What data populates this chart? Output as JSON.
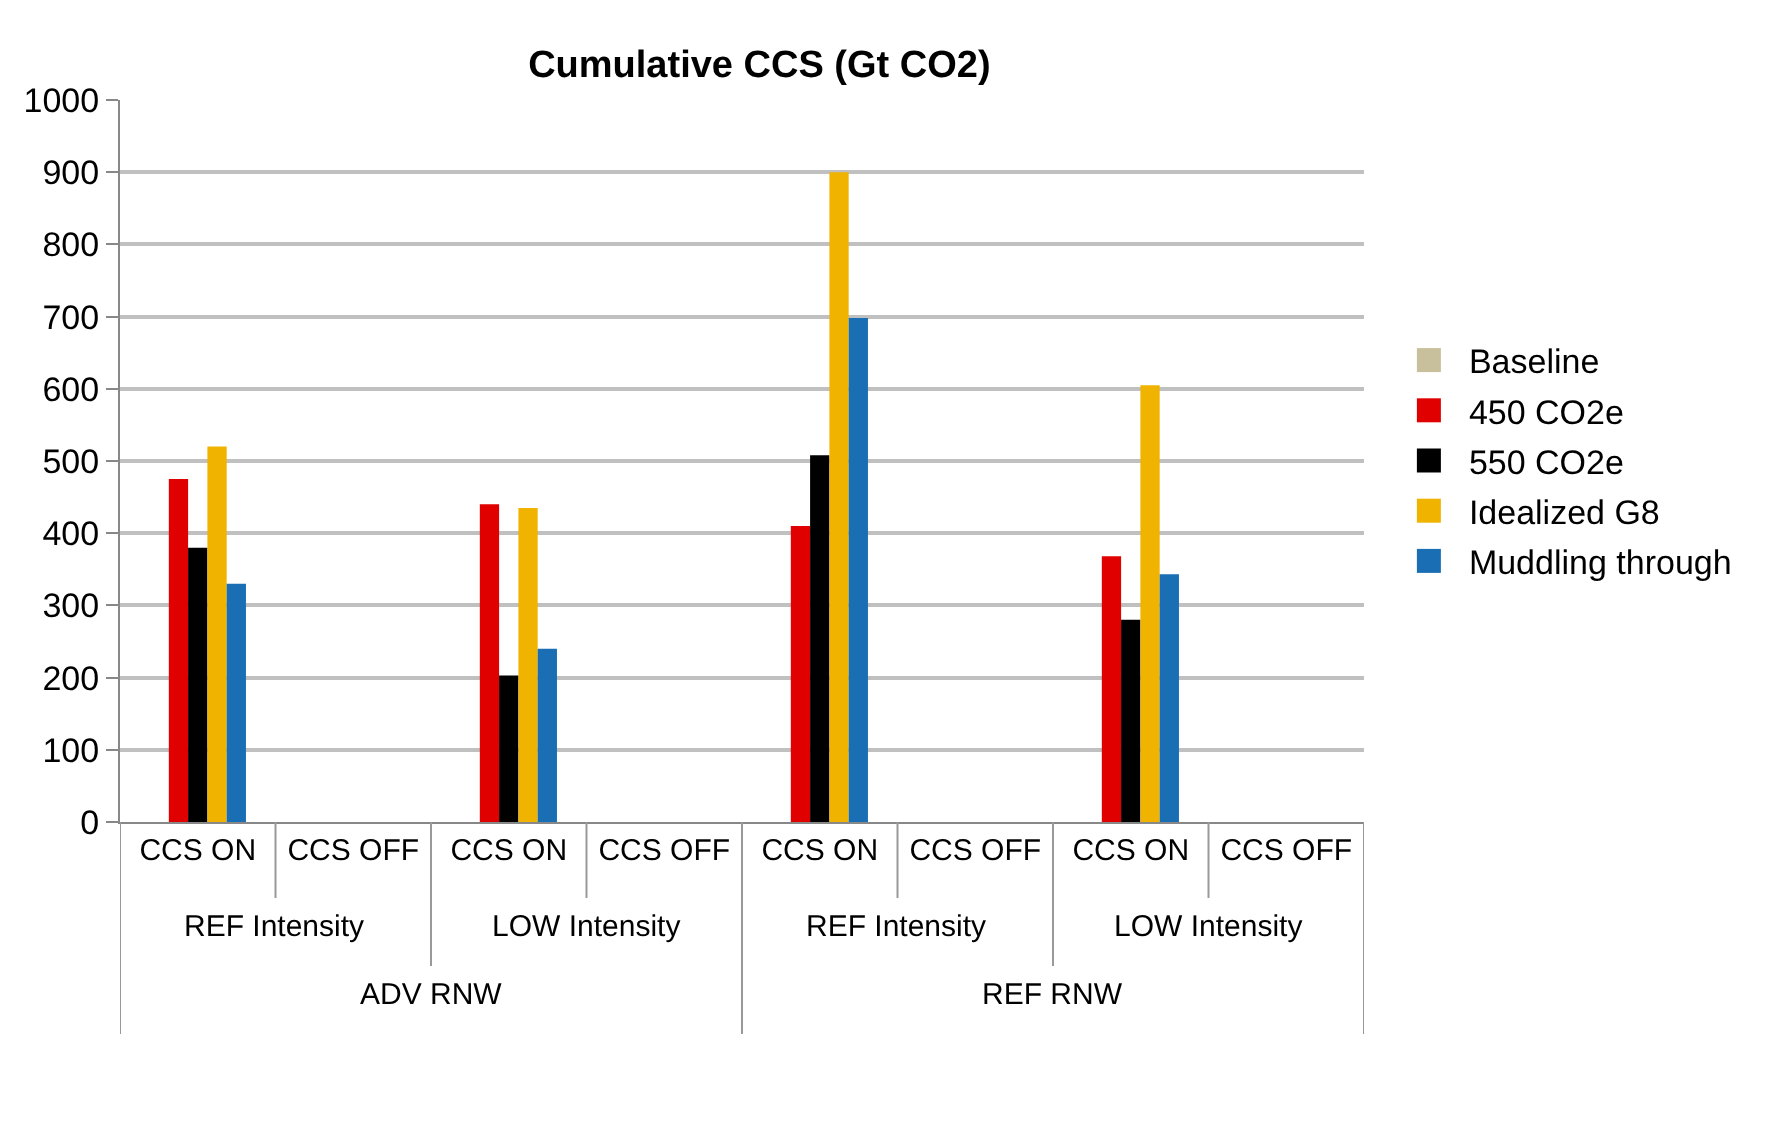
{
  "chart_data": {
    "type": "bar",
    "title": "Cumulative CCS (Gt CO2)",
    "categories": [
      "CCS ON",
      "CCS OFF",
      "CCS ON",
      "CCS OFF",
      "CCS ON",
      "CCS OFF",
      "CCS ON",
      "CCS OFF"
    ],
    "series": [
      {
        "name": "Baseline",
        "color": "#c8bf9c",
        "values": [
          null,
          null,
          null,
          null,
          null,
          null,
          null,
          null
        ]
      },
      {
        "name": "450 CO2e",
        "color": "#e00000",
        "values": [
          475,
          null,
          440,
          null,
          410,
          null,
          368,
          null
        ]
      },
      {
        "name": "550 CO2e",
        "color": "#000000",
        "values": [
          380,
          null,
          203,
          null,
          508,
          null,
          280,
          null
        ]
      },
      {
        "name": "Idealized G8",
        "color": "#f0b400",
        "values": [
          520,
          null,
          435,
          null,
          900,
          null,
          605,
          null
        ]
      },
      {
        "name": "Muddling through",
        "color": "#1a6eb4",
        "values": [
          330,
          null,
          240,
          null,
          698,
          null,
          343,
          null
        ]
      }
    ],
    "annotations": [
      "REF Intensity",
      "LOW Intensity",
      "REF Intensity",
      "LOW Intensity",
      "ADV RNW",
      "REF RNW"
    ],
    "ylim": [
      0,
      1000
    ],
    "yticks": [
      0,
      100,
      200,
      300,
      400,
      500,
      600,
      700,
      800,
      900,
      1000
    ],
    "grid": "y",
    "legend": "right"
  }
}
